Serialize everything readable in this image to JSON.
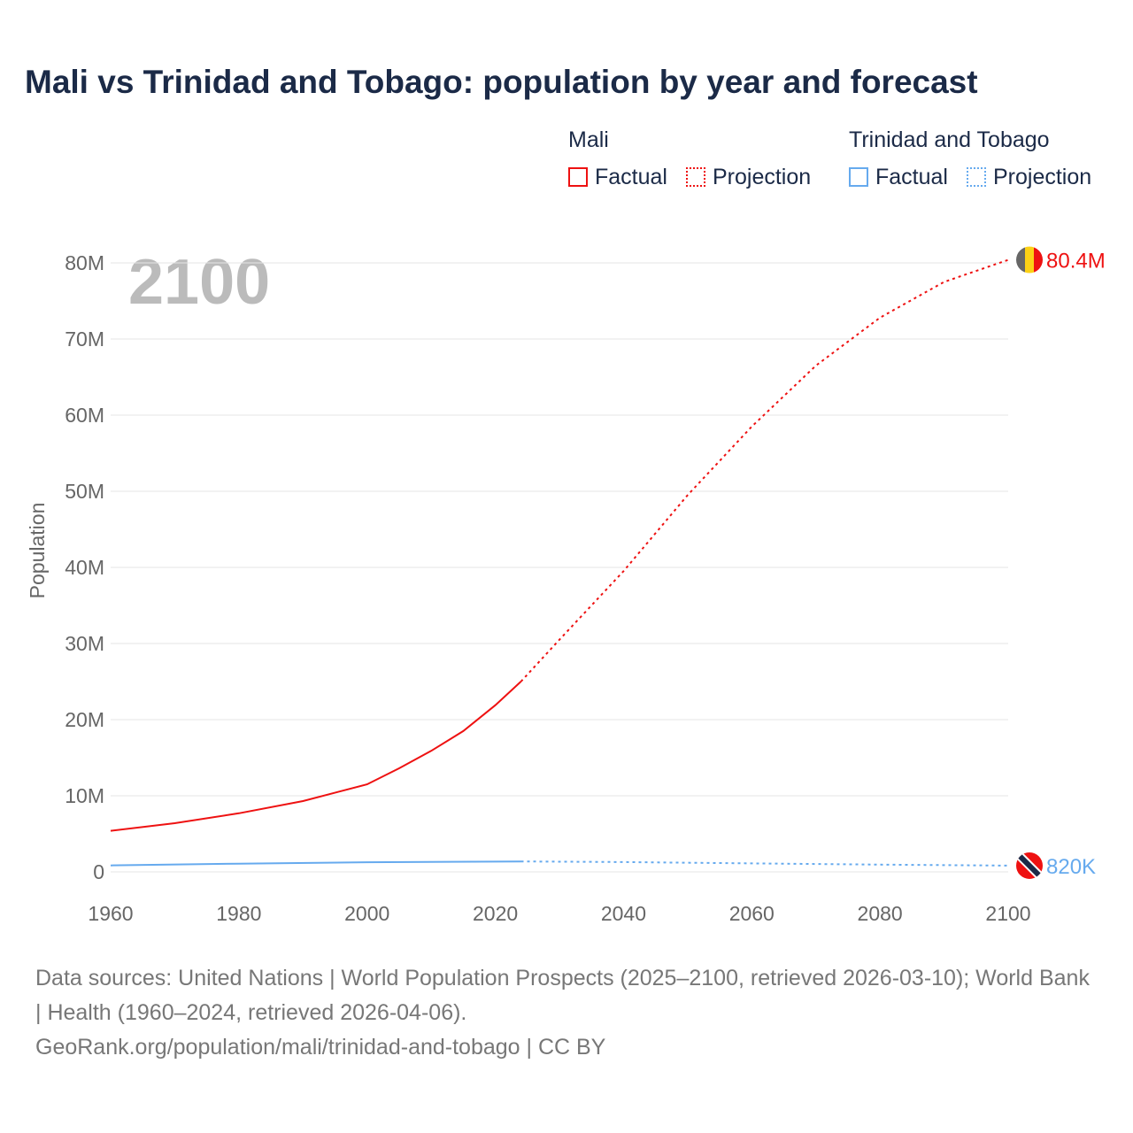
{
  "title": "Mali vs Trinidad and Tobago: population by year and forecast",
  "legend": {
    "groups": [
      {
        "name": "Mali",
        "color": "#ee1111",
        "factual": "Factual",
        "projection": "Projection"
      },
      {
        "name": "Trinidad and Tobago",
        "color": "#66aaee",
        "factual": "Factual",
        "projection": "Projection"
      }
    ]
  },
  "year_label": "2100",
  "footer": {
    "sources": "Data sources: United Nations | World Population Prospects (2025–2100, retrieved 2026-03-10); World Bank | Health (1960–2024, retrieved 2026-04-06).",
    "link": "GeoRank.org/population/mali/trinidad-and-tobago | CC BY"
  },
  "chart_data": {
    "type": "line",
    "title": "Mali vs Trinidad and Tobago: population by year and forecast",
    "xlabel": "",
    "ylabel": "Population",
    "xlim": [
      1960,
      2100
    ],
    "ylim": [
      0,
      80000000
    ],
    "xticks": [
      "1960",
      "1980",
      "2000",
      "2020",
      "2040",
      "2060",
      "2080",
      "2100"
    ],
    "yticks": [
      "0",
      "10M",
      "20M",
      "30M",
      "40M",
      "50M",
      "60M",
      "70M",
      "80M"
    ],
    "grid": true,
    "series": [
      {
        "name": "Mali",
        "color": "#ee1111",
        "end_label": "80.4M",
        "factual": {
          "x": [
            1960,
            1970,
            1980,
            1990,
            2000,
            2005,
            2010,
            2015,
            2020,
            2024
          ],
          "y": [
            5.4,
            6.4,
            7.7,
            9.3,
            11.5,
            13.6,
            15.9,
            18.5,
            21.9,
            25.0
          ]
        },
        "projection": {
          "x": [
            2024,
            2030,
            2040,
            2050,
            2060,
            2070,
            2080,
            2090,
            2100
          ],
          "y": [
            25.0,
            30.5,
            39.5,
            49.5,
            58.5,
            66.5,
            72.8,
            77.5,
            80.4
          ]
        }
      },
      {
        "name": "Trinidad and Tobago",
        "color": "#66aaee",
        "end_label": "820K",
        "factual": {
          "x": [
            1960,
            1980,
            2000,
            2024
          ],
          "y": [
            0.85,
            1.08,
            1.27,
            1.37
          ]
        },
        "projection": {
          "x": [
            2024,
            2040,
            2060,
            2080,
            2100
          ],
          "y": [
            1.37,
            1.29,
            1.12,
            0.95,
            0.82
          ]
        }
      }
    ],
    "units": "millions"
  }
}
